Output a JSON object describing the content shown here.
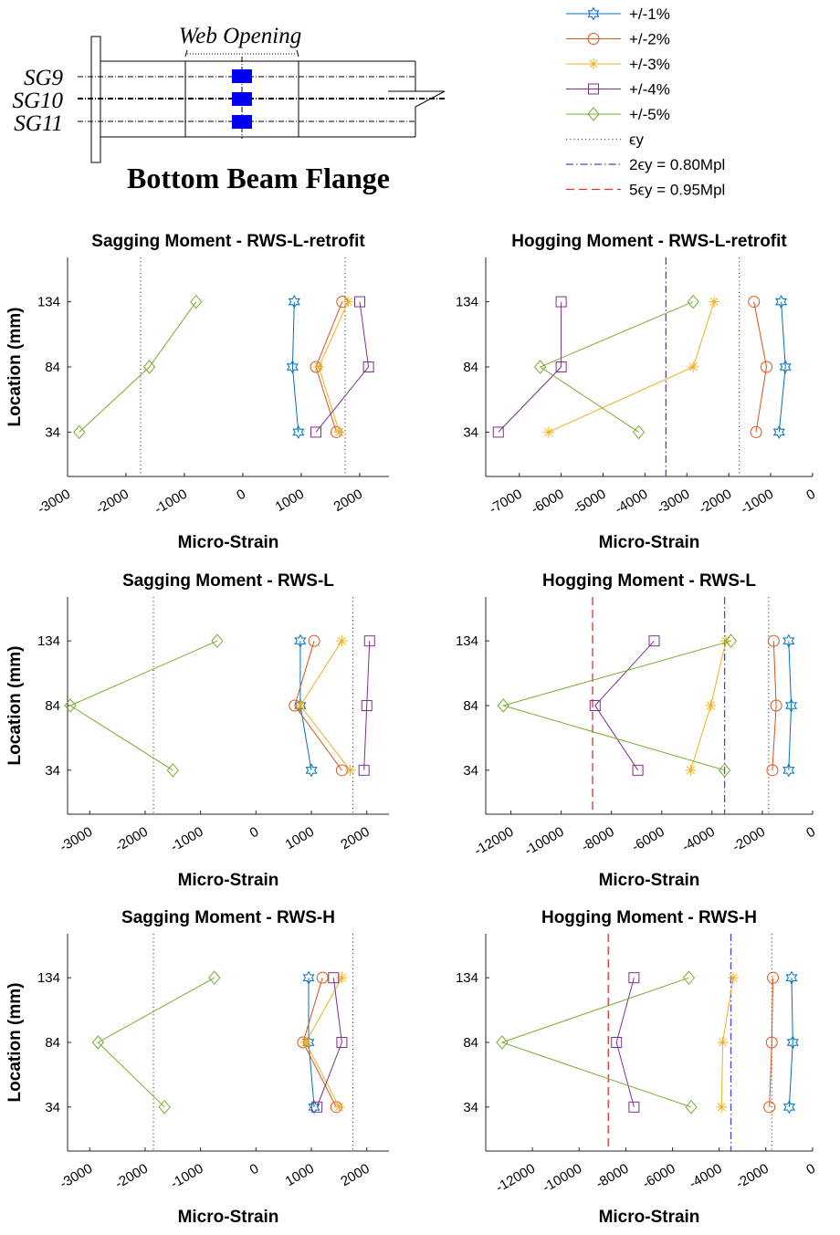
{
  "diagram": {
    "web_opening_label": "Web Opening",
    "gauges": [
      "SG9",
      "SG10",
      "SG11"
    ],
    "caption": "Bottom Beam Flange"
  },
  "legend": {
    "entries": [
      {
        "label": "+/-1%",
        "color": "#0072BD",
        "marker": "hexagram",
        "line": "solid"
      },
      {
        "label": "+/-2%",
        "color": "#D95319",
        "marker": "circle",
        "line": "solid"
      },
      {
        "label": "+/-3%",
        "color": "#EDB120",
        "marker": "asterisk",
        "line": "solid"
      },
      {
        "label": "+/-4%",
        "color": "#7E2F8E",
        "marker": "square",
        "line": "solid"
      },
      {
        "label": "+/-5%",
        "color": "#77AC30",
        "marker": "diamond",
        "line": "solid"
      },
      {
        "label": "ϵy",
        "color": "#555555",
        "marker": "none",
        "line": "dotted"
      },
      {
        "label": "2ϵy = 0.80Mpl",
        "color": "#4444EE",
        "marker": "none",
        "line": "dashdot"
      },
      {
        "label": "5ϵy = 0.95Mpl",
        "color": "#E03030",
        "marker": "none",
        "line": "dashed"
      }
    ]
  },
  "chart_data": [
    {
      "type": "line",
      "title": "Sagging Moment - RWS-L-retrofit",
      "xlabel": "Micro-Strain",
      "ylabel": "Location (mm)",
      "xlim": [
        -3000,
        2500
      ],
      "ylim": [
        0,
        168
      ],
      "xticks": [
        -3000,
        -2000,
        -1000,
        0,
        1000,
        2000
      ],
      "yticks": [
        34,
        84,
        134
      ],
      "ref_lines": [
        {
          "x": -1750,
          "style": "dotted"
        },
        {
          "x": 1750,
          "style": "dotted"
        }
      ],
      "series": [
        {
          "name": "+/-1%",
          "x": [
            950,
            850,
            880
          ],
          "y": [
            34,
            84,
            134
          ]
        },
        {
          "name": "+/-2%",
          "x": [
            1600,
            1250,
            1700
          ],
          "y": [
            34,
            84,
            134
          ]
        },
        {
          "name": "+/-3%",
          "x": [
            1650,
            1300,
            1800
          ],
          "y": [
            34,
            84,
            134
          ]
        },
        {
          "name": "+/-4%",
          "x": [
            1250,
            2150,
            2000
          ],
          "y": [
            34,
            84,
            134
          ]
        },
        {
          "name": "+/-5%",
          "x": [
            -2800,
            -1600,
            -800
          ],
          "y": [
            34,
            84,
            134
          ]
        }
      ]
    },
    {
      "type": "line",
      "title": "Hogging Moment - RWS-L-retrofit",
      "xlabel": "Micro-Strain",
      "ylabel": "",
      "xlim": [
        -7800,
        0
      ],
      "ylim": [
        0,
        168
      ],
      "xticks": [
        -7000,
        -6000,
        -5000,
        -4000,
        -3000,
        -2000,
        -1000,
        0
      ],
      "yticks": [
        34,
        84,
        134
      ],
      "ref_lines": [
        {
          "x": -3500,
          "style": "dashdot"
        },
        {
          "x": -1750,
          "style": "dotted"
        }
      ],
      "series": [
        {
          "name": "+/-1%",
          "x": [
            -800,
            -650,
            -750
          ],
          "y": [
            34,
            84,
            134
          ]
        },
        {
          "name": "+/-2%",
          "x": [
            -1350,
            -1100,
            -1400
          ],
          "y": [
            34,
            84,
            134
          ]
        },
        {
          "name": "+/-3%",
          "x": [
            -6300,
            -2850,
            -2350
          ],
          "y": [
            34,
            84,
            134
          ]
        },
        {
          "name": "+/-4%",
          "x": [
            -7500,
            -6000,
            -6000
          ],
          "y": [
            34,
            84,
            134
          ]
        },
        {
          "name": "+/-5%",
          "x": [
            -4150,
            -6500,
            -2850
          ],
          "y": [
            34,
            84,
            134
          ]
        }
      ]
    },
    {
      "type": "line",
      "title": "Sagging Moment - RWS-L",
      "xlabel": "Micro-Strain",
      "ylabel": "Location (mm)",
      "xlim": [
        -3400,
        2400
      ],
      "ylim": [
        0,
        168
      ],
      "xticks": [
        -3000,
        -2000,
        -1000,
        0,
        1000,
        2000
      ],
      "yticks": [
        34,
        84,
        134
      ],
      "ref_lines": [
        {
          "x": -1850,
          "style": "dotted"
        },
        {
          "x": 1750,
          "style": "dotted"
        }
      ],
      "series": [
        {
          "name": "+/-1%",
          "x": [
            1000,
            800,
            800
          ],
          "y": [
            34,
            84,
            134
          ]
        },
        {
          "name": "+/-2%",
          "x": [
            1550,
            700,
            1050
          ],
          "y": [
            34,
            84,
            134
          ]
        },
        {
          "name": "+/-3%",
          "x": [
            1700,
            800,
            1550
          ],
          "y": [
            34,
            84,
            134
          ]
        },
        {
          "name": "+/-4%",
          "x": [
            1950,
            2000,
            2050
          ],
          "y": [
            34,
            84,
            134
          ]
        },
        {
          "name": "+/-5%",
          "x": [
            -1500,
            -3350,
            -700
          ],
          "y": [
            34,
            84,
            134
          ]
        }
      ]
    },
    {
      "type": "line",
      "title": "Hogging Moment - RWS-L",
      "xlabel": "Micro-Strain",
      "ylabel": "",
      "xlim": [
        -13000,
        0
      ],
      "ylim": [
        0,
        168
      ],
      "xticks": [
        -12000,
        -10000,
        -8000,
        -6000,
        -4000,
        -2000,
        0
      ],
      "yticks": [
        34,
        84,
        134
      ],
      "ref_lines": [
        {
          "x": -8750,
          "style": "dashed"
        },
        {
          "x": -3500,
          "style": "dashdot"
        },
        {
          "x": -1750,
          "style": "dotted"
        }
      ],
      "series": [
        {
          "name": "+/-1%",
          "x": [
            -950,
            -850,
            -950
          ],
          "y": [
            34,
            84,
            134
          ]
        },
        {
          "name": "+/-2%",
          "x": [
            -1600,
            -1450,
            -1550
          ],
          "y": [
            34,
            84,
            134
          ]
        },
        {
          "name": "+/-3%",
          "x": [
            -4850,
            -4050,
            -3450
          ],
          "y": [
            34,
            84,
            134
          ]
        },
        {
          "name": "+/-4%",
          "x": [
            -6950,
            -8650,
            -6300
          ],
          "y": [
            34,
            84,
            134
          ]
        },
        {
          "name": "+/-5%",
          "x": [
            -3500,
            -12300,
            -3250
          ],
          "y": [
            34,
            84,
            134
          ]
        }
      ]
    },
    {
      "type": "line",
      "title": "Sagging Moment - RWS-H",
      "xlabel": "Micro-Strain",
      "ylabel": "Location (mm)",
      "xlim": [
        -3400,
        2400
      ],
      "ylim": [
        0,
        168
      ],
      "xticks": [
        -3000,
        -2000,
        -1000,
        0,
        1000,
        2000
      ],
      "yticks": [
        34,
        84,
        134
      ],
      "ref_lines": [
        {
          "x": -1850,
          "style": "dotted"
        },
        {
          "x": 1750,
          "style": "dotted"
        }
      ],
      "series": [
        {
          "name": "+/-1%",
          "x": [
            1050,
            950,
            950
          ],
          "y": [
            34,
            84,
            134
          ]
        },
        {
          "name": "+/-2%",
          "x": [
            1450,
            850,
            1200
          ],
          "y": [
            34,
            84,
            134
          ]
        },
        {
          "name": "+/-3%",
          "x": [
            1500,
            900,
            1550
          ],
          "y": [
            34,
            84,
            134
          ]
        },
        {
          "name": "+/-4%",
          "x": [
            1100,
            1550,
            1400
          ],
          "y": [
            34,
            84,
            134
          ]
        },
        {
          "name": "+/-5%",
          "x": [
            -1650,
            -2850,
            -750
          ],
          "y": [
            34,
            84,
            134
          ]
        }
      ]
    },
    {
      "type": "line",
      "title": "Hogging Moment - RWS-H",
      "xlabel": "Micro-Strain",
      "ylabel": "",
      "xlim": [
        -14000,
        0
      ],
      "ylim": [
        0,
        168
      ],
      "xticks": [
        -12000,
        -10000,
        -8000,
        -6000,
        -4000,
        -2000,
        0
      ],
      "yticks": [
        34,
        84,
        134
      ],
      "ref_lines": [
        {
          "x": -8750,
          "style": "dashed"
        },
        {
          "x": -3500,
          "style": "dashdot"
        },
        {
          "x": -1750,
          "style": "dotted"
        }
      ],
      "series": [
        {
          "name": "+/-1%",
          "x": [
            -1000,
            -850,
            -900
          ],
          "y": [
            34,
            84,
            134
          ]
        },
        {
          "name": "+/-2%",
          "x": [
            -1850,
            -1750,
            -1700
          ],
          "y": [
            34,
            84,
            134
          ]
        },
        {
          "name": "+/-3%",
          "x": [
            -3900,
            -3850,
            -3400
          ],
          "y": [
            34,
            84,
            134
          ]
        },
        {
          "name": "+/-4%",
          "x": [
            -7650,
            -8400,
            -7650
          ],
          "y": [
            34,
            84,
            134
          ]
        },
        {
          "name": "+/-5%",
          "x": [
            -5200,
            -13300,
            -5300
          ],
          "y": [
            34,
            84,
            134
          ]
        }
      ]
    }
  ]
}
